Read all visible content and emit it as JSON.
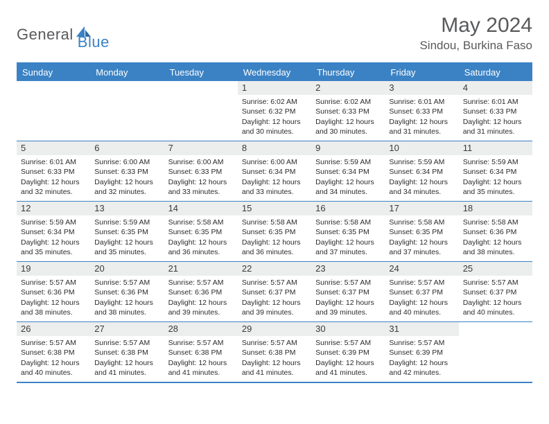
{
  "logo": {
    "text1": "General",
    "text2": "Blue"
  },
  "title": "May 2024",
  "location": "Sindou, Burkina Faso",
  "colors": {
    "brand_blue": "#3b82c4",
    "grey_text": "#58595b",
    "header_bg": "#3b82c4",
    "daynum_bg": "#eceded",
    "cell_text": "#2b2b2b",
    "white": "#ffffff"
  },
  "typography": {
    "title_fontsize": 30,
    "location_fontsize": 17,
    "dayhead_fontsize": 13,
    "daynum_fontsize": 13,
    "info_fontsize": 10.5
  },
  "day_names": [
    "Sunday",
    "Monday",
    "Tuesday",
    "Wednesday",
    "Thursday",
    "Friday",
    "Saturday"
  ],
  "weeks": [
    [
      {
        "n": "",
        "sr": "",
        "ss": "",
        "dl": ""
      },
      {
        "n": "",
        "sr": "",
        "ss": "",
        "dl": ""
      },
      {
        "n": "",
        "sr": "",
        "ss": "",
        "dl": ""
      },
      {
        "n": "1",
        "sr": "Sunrise: 6:02 AM",
        "ss": "Sunset: 6:32 PM",
        "dl": "Daylight: 12 hours and 30 minutes."
      },
      {
        "n": "2",
        "sr": "Sunrise: 6:02 AM",
        "ss": "Sunset: 6:33 PM",
        "dl": "Daylight: 12 hours and 30 minutes."
      },
      {
        "n": "3",
        "sr": "Sunrise: 6:01 AM",
        "ss": "Sunset: 6:33 PM",
        "dl": "Daylight: 12 hours and 31 minutes."
      },
      {
        "n": "4",
        "sr": "Sunrise: 6:01 AM",
        "ss": "Sunset: 6:33 PM",
        "dl": "Daylight: 12 hours and 31 minutes."
      }
    ],
    [
      {
        "n": "5",
        "sr": "Sunrise: 6:01 AM",
        "ss": "Sunset: 6:33 PM",
        "dl": "Daylight: 12 hours and 32 minutes."
      },
      {
        "n": "6",
        "sr": "Sunrise: 6:00 AM",
        "ss": "Sunset: 6:33 PM",
        "dl": "Daylight: 12 hours and 32 minutes."
      },
      {
        "n": "7",
        "sr": "Sunrise: 6:00 AM",
        "ss": "Sunset: 6:33 PM",
        "dl": "Daylight: 12 hours and 33 minutes."
      },
      {
        "n": "8",
        "sr": "Sunrise: 6:00 AM",
        "ss": "Sunset: 6:34 PM",
        "dl": "Daylight: 12 hours and 33 minutes."
      },
      {
        "n": "9",
        "sr": "Sunrise: 5:59 AM",
        "ss": "Sunset: 6:34 PM",
        "dl": "Daylight: 12 hours and 34 minutes."
      },
      {
        "n": "10",
        "sr": "Sunrise: 5:59 AM",
        "ss": "Sunset: 6:34 PM",
        "dl": "Daylight: 12 hours and 34 minutes."
      },
      {
        "n": "11",
        "sr": "Sunrise: 5:59 AM",
        "ss": "Sunset: 6:34 PM",
        "dl": "Daylight: 12 hours and 35 minutes."
      }
    ],
    [
      {
        "n": "12",
        "sr": "Sunrise: 5:59 AM",
        "ss": "Sunset: 6:34 PM",
        "dl": "Daylight: 12 hours and 35 minutes."
      },
      {
        "n": "13",
        "sr": "Sunrise: 5:59 AM",
        "ss": "Sunset: 6:35 PM",
        "dl": "Daylight: 12 hours and 35 minutes."
      },
      {
        "n": "14",
        "sr": "Sunrise: 5:58 AM",
        "ss": "Sunset: 6:35 PM",
        "dl": "Daylight: 12 hours and 36 minutes."
      },
      {
        "n": "15",
        "sr": "Sunrise: 5:58 AM",
        "ss": "Sunset: 6:35 PM",
        "dl": "Daylight: 12 hours and 36 minutes."
      },
      {
        "n": "16",
        "sr": "Sunrise: 5:58 AM",
        "ss": "Sunset: 6:35 PM",
        "dl": "Daylight: 12 hours and 37 minutes."
      },
      {
        "n": "17",
        "sr": "Sunrise: 5:58 AM",
        "ss": "Sunset: 6:35 PM",
        "dl": "Daylight: 12 hours and 37 minutes."
      },
      {
        "n": "18",
        "sr": "Sunrise: 5:58 AM",
        "ss": "Sunset: 6:36 PM",
        "dl": "Daylight: 12 hours and 38 minutes."
      }
    ],
    [
      {
        "n": "19",
        "sr": "Sunrise: 5:57 AM",
        "ss": "Sunset: 6:36 PM",
        "dl": "Daylight: 12 hours and 38 minutes."
      },
      {
        "n": "20",
        "sr": "Sunrise: 5:57 AM",
        "ss": "Sunset: 6:36 PM",
        "dl": "Daylight: 12 hours and 38 minutes."
      },
      {
        "n": "21",
        "sr": "Sunrise: 5:57 AM",
        "ss": "Sunset: 6:36 PM",
        "dl": "Daylight: 12 hours and 39 minutes."
      },
      {
        "n": "22",
        "sr": "Sunrise: 5:57 AM",
        "ss": "Sunset: 6:37 PM",
        "dl": "Daylight: 12 hours and 39 minutes."
      },
      {
        "n": "23",
        "sr": "Sunrise: 5:57 AM",
        "ss": "Sunset: 6:37 PM",
        "dl": "Daylight: 12 hours and 39 minutes."
      },
      {
        "n": "24",
        "sr": "Sunrise: 5:57 AM",
        "ss": "Sunset: 6:37 PM",
        "dl": "Daylight: 12 hours and 40 minutes."
      },
      {
        "n": "25",
        "sr": "Sunrise: 5:57 AM",
        "ss": "Sunset: 6:37 PM",
        "dl": "Daylight: 12 hours and 40 minutes."
      }
    ],
    [
      {
        "n": "26",
        "sr": "Sunrise: 5:57 AM",
        "ss": "Sunset: 6:38 PM",
        "dl": "Daylight: 12 hours and 40 minutes."
      },
      {
        "n": "27",
        "sr": "Sunrise: 5:57 AM",
        "ss": "Sunset: 6:38 PM",
        "dl": "Daylight: 12 hours and 41 minutes."
      },
      {
        "n": "28",
        "sr": "Sunrise: 5:57 AM",
        "ss": "Sunset: 6:38 PM",
        "dl": "Daylight: 12 hours and 41 minutes."
      },
      {
        "n": "29",
        "sr": "Sunrise: 5:57 AM",
        "ss": "Sunset: 6:38 PM",
        "dl": "Daylight: 12 hours and 41 minutes."
      },
      {
        "n": "30",
        "sr": "Sunrise: 5:57 AM",
        "ss": "Sunset: 6:39 PM",
        "dl": "Daylight: 12 hours and 41 minutes."
      },
      {
        "n": "31",
        "sr": "Sunrise: 5:57 AM",
        "ss": "Sunset: 6:39 PM",
        "dl": "Daylight: 12 hours and 42 minutes."
      },
      {
        "n": "",
        "sr": "",
        "ss": "",
        "dl": ""
      }
    ]
  ]
}
